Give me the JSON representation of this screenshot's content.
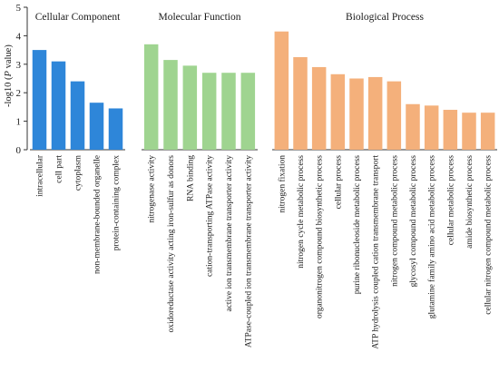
{
  "chart_data": {
    "type": "bar",
    "ylabel_prefix": "-log10 (",
    "ylabel_italic": "P",
    "ylabel_suffix": " value)",
    "ylim": [
      0,
      5
    ],
    "yticks": [
      "0",
      "1",
      "2",
      "3",
      "4",
      "5"
    ],
    "grid": false,
    "legend": "none",
    "series": [
      {
        "name": "Cellular Component",
        "color": "#2e86d9",
        "categories": [
          "intracellular",
          "cell part",
          "cytoplasm",
          "non-membrane-bounded organelle",
          "protein-containing complex"
        ],
        "values": [
          3.5,
          3.1,
          2.4,
          1.65,
          1.45
        ]
      },
      {
        "name": "Molecular Function",
        "color": "#9fd490",
        "categories": [
          "nitrogenase activity",
          "oxidoreductase activity acting iron-sulfur as donors",
          "RNA binding",
          "cation-transporting ATPase activity",
          "active ion transmembrane transporter activity",
          "ATPase-coupled ion transmembrane transporter activity"
        ],
        "values": [
          3.7,
          3.15,
          2.95,
          2.7,
          2.7,
          2.7
        ]
      },
      {
        "name": "Biological Process",
        "color": "#f4b07b",
        "categories": [
          "nitrogen fixation",
          "nitrogen cycle metabolic process",
          "organonitrogen compound biosynthetic process",
          "cellular process",
          "purine ribonucleoside metabolic process",
          "ATP hydrolysis coupled cation transmembrane transport",
          "nitrogen compound metabolic process",
          "glycosyl compound metabolic process",
          "glutamine family amino acid metabolic process",
          "cellular metabolic process",
          "amide biosynthetic process",
          "cellular nitrogen compound metabolic process"
        ],
        "values": [
          4.15,
          3.25,
          2.9,
          2.65,
          2.5,
          2.55,
          2.4,
          1.6,
          1.55,
          1.4,
          1.3,
          1.3
        ]
      }
    ]
  }
}
